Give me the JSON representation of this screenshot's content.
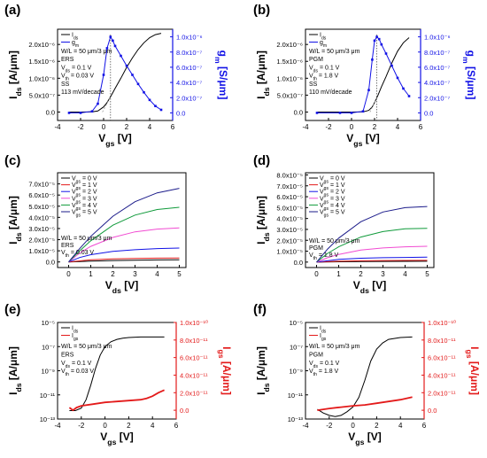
{
  "colors": {
    "black": "#000000",
    "blue": "#1212e6",
    "red": "#e31a1a",
    "grey": "#9a9a9a",
    "pink": "#f14bd2",
    "green": "#0f9a3a",
    "navy": "#1b1b8a"
  },
  "chart_data": [
    {
      "panel": "(a)",
      "type": "line",
      "xlabel": "V_gs [V]",
      "ylabel": "I_ds [A/μm]",
      "y2label": "g_m [S/μm]",
      "xlim": [
        -4,
        6
      ],
      "ylim": [
        -2.5e-07,
        2.45e-06
      ],
      "y2lim": [
        -1e-07,
        1.1e-06
      ],
      "xticks": [
        "-4",
        "-2",
        "0",
        "2",
        "4",
        "6"
      ],
      "yticks": [
        "0.0",
        "5.0x10⁻⁷",
        "1.0x10⁻⁶",
        "1.5x10⁻⁶",
        "2.0x10⁻⁶"
      ],
      "y2ticks": [
        "0.0",
        "2.0x10⁻⁷",
        "4.0x10⁻⁷",
        "6.0x10⁻⁷",
        "8.0x10⁻⁷",
        "1.0x10⁻⁶"
      ],
      "legend": [
        "I_ds",
        "g_m"
      ],
      "annotations": [
        "W/L = 50 μm/3 μm",
        "ERS",
        "V_ds = 0.1 V",
        "V_th = 0.03 V",
        "SS",
        "113 mV/decade"
      ],
      "series": [
        {
          "name": "I_ds",
          "axis": "left",
          "color": "black",
          "x": [
            -3,
            -2,
            -1,
            -0.5,
            0,
            0.3,
            0.6,
            1,
            1.5,
            2,
            2.5,
            3,
            3.5,
            4,
            4.5,
            5
          ],
          "y": [
            0,
            0,
            5e-09,
            3e-08,
            1.5e-07,
            2.8e-07,
            4.5e-07,
            7e-07,
            1e-06,
            1.32e-06,
            1.6e-06,
            1.85e-06,
            2.05e-06,
            2.2e-06,
            2.29e-06,
            2.33e-06
          ]
        },
        {
          "name": "g_m",
          "axis": "right",
          "color": "blue",
          "x": [
            -3,
            -2,
            -1,
            -0.5,
            0,
            0.3,
            0.6,
            0.8,
            1,
            1.5,
            2,
            2.5,
            3,
            3.5,
            4,
            4.5,
            5
          ],
          "y": [
            0,
            0,
            2e-08,
            1.2e-07,
            5e-07,
            8.5e-07,
            1e-06,
            9.5e-07,
            8.8e-07,
            7.5e-07,
            6.2e-07,
            5e-07,
            3.8e-07,
            2.7e-07,
            1.7e-07,
            9e-08,
            4e-08
          ]
        },
        {
          "name": "",
          "axis": "left",
          "color": "grey",
          "style": "dotted-extrapolation",
          "x": [
            -0.1,
            0.6
          ],
          "y": [
            0,
            4.5e-07
          ]
        }
      ],
      "vline": 0.6
    },
    {
      "panel": "(b)",
      "type": "line",
      "xlabel": "V_gs [V]",
      "ylabel": "I_ds [A/μm]",
      "y2label": "g_m [S/μm]",
      "xlim": [
        -4,
        6
      ],
      "ylim": [
        -2.5e-07,
        2.45e-06
      ],
      "y2lim": [
        -1e-07,
        1.1e-06
      ],
      "xticks": [
        "-4",
        "-2",
        "0",
        "2",
        "4",
        "6"
      ],
      "yticks": [
        "0.0",
        "5.0x10⁻⁷",
        "1.0x10⁻⁶",
        "1.5x10⁻⁶",
        "2.0x10⁻⁶"
      ],
      "y2ticks": [
        "0.0",
        "2.0x10⁻⁷",
        "4.0x10⁻⁷",
        "6.0x10⁻⁷",
        "8.0x10⁻⁷",
        "1.0x10⁻⁶"
      ],
      "legend": [
        "I_ds",
        "g_m"
      ],
      "annotations": [
        "W/L = 50 μm/3 μm",
        "PGM",
        "V_ds = 0.1 V",
        "V_th = 1.8 V",
        "SS",
        "110 mV/decade"
      ],
      "series": [
        {
          "name": "I_ds",
          "axis": "left",
          "color": "black",
          "x": [
            -3,
            -1,
            0,
            1,
            1.5,
            1.8,
            2,
            2.3,
            2.6,
            3,
            3.5,
            4,
            4.5,
            5
          ],
          "y": [
            0,
            0,
            0,
            5e-09,
            5e-08,
            1.5e-07,
            2.8e-07,
            5e-07,
            7.5e-07,
            1.05e-06,
            1.45e-06,
            1.8e-06,
            2.05e-06,
            2.2e-06
          ]
        },
        {
          "name": "g_m",
          "axis": "right",
          "color": "blue",
          "x": [
            -3,
            -1,
            0,
            1,
            1.5,
            1.8,
            2,
            2.2,
            2.4,
            2.6,
            3,
            3.5,
            4,
            4.5,
            5
          ],
          "y": [
            0,
            0,
            0,
            2e-08,
            3e-07,
            7e-07,
            9.5e-07,
            1e-06,
            9.7e-07,
            9e-07,
            7.8e-07,
            6.2e-07,
            4.6e-07,
            3.2e-07,
            2.2e-07
          ]
        },
        {
          "name": "",
          "axis": "left",
          "color": "grey",
          "style": "dotted-extrapolation",
          "x": [
            1.6,
            2.2
          ],
          "y": [
            0,
            4.2e-07
          ]
        }
      ],
      "vline": 2.2
    },
    {
      "panel": "(c)",
      "type": "line",
      "xlabel": "V_ds [V]",
      "ylabel": "I_ds [A/μm]",
      "xlim": [
        -0.5,
        5.3
      ],
      "ylim": [
        -5e-06,
        8e-05
      ],
      "xticks": [
        "0",
        "1",
        "2",
        "3",
        "4",
        "5"
      ],
      "yticks": [
        "0.0",
        "1.0x10⁻⁵",
        "2.0x10⁻⁵",
        "3.0x10⁻⁵",
        "4.0x10⁻⁵",
        "5.0x10⁻⁵",
        "6.0x10⁻⁵",
        "7.0x10⁻⁵"
      ],
      "legend": [
        "V_gs = 0 V",
        "V_gs = 1 V",
        "V_gs = 2 V",
        "V_gs = 3 V",
        "V_gs = 4 V",
        "V_gs = 5 V"
      ],
      "annotations": [
        "W/L = 50 μm/3 μm",
        "ERS",
        "V_th = 0.03 V"
      ],
      "series": [
        {
          "name": "V_gs = 0 V",
          "color": "black",
          "x": [
            0,
            1,
            2,
            3,
            4,
            5
          ],
          "y": [
            0,
            8e-07,
            1.3e-06,
            1.6e-06,
            1.8e-06,
            2e-06
          ]
        },
        {
          "name": "V_gs = 1 V",
          "color": "red",
          "x": [
            0,
            1,
            2,
            3,
            4,
            5
          ],
          "y": [
            0,
            2e-06,
            2.8e-06,
            3.2e-06,
            3.4e-06,
            3.6e-06
          ]
        },
        {
          "name": "V_gs = 2 V",
          "color": "blue",
          "x": [
            0,
            0.5,
            1,
            2,
            3,
            4,
            5
          ],
          "y": [
            0,
            4e-06,
            6.5e-06,
            9.5e-06,
            1.1e-05,
            1.2e-05,
            1.25e-05
          ]
        },
        {
          "name": "V_gs = 3 V",
          "color": "pink",
          "x": [
            0,
            0.5,
            1,
            2,
            3,
            4,
            5
          ],
          "y": [
            0,
            8e-06,
            1.4e-05,
            2.2e-05,
            2.7e-05,
            2.95e-05,
            3.05e-05
          ]
        },
        {
          "name": "V_gs = 4 V",
          "color": "green",
          "x": [
            0,
            0.5,
            1,
            2,
            3,
            4,
            5
          ],
          "y": [
            0,
            1e-05,
            1.9e-05,
            3.3e-05,
            4.2e-05,
            4.7e-05,
            4.9e-05
          ]
        },
        {
          "name": "V_gs = 5 V",
          "color": "navy",
          "x": [
            0,
            0.5,
            1,
            2,
            3,
            4,
            5
          ],
          "y": [
            0,
            1.2e-05,
            2.3e-05,
            4.1e-05,
            5.4e-05,
            6.2e-05,
            6.6e-05
          ]
        }
      ]
    },
    {
      "panel": "(d)",
      "type": "line",
      "xlabel": "V_ds [V]",
      "ylabel": "I_ds [A/μm]",
      "xlim": [
        -0.5,
        5.3
      ],
      "ylim": [
        -5e-06,
        8.2e-05
      ],
      "xticks": [
        "0",
        "1",
        "2",
        "3",
        "4",
        "5"
      ],
      "yticks": [
        "0.0",
        "1.0x10⁻⁵",
        "2.0x10⁻⁵",
        "3.0x10⁻⁵",
        "4.0x10⁻⁵",
        "5.0x10⁻⁵",
        "6.0x10⁻⁵",
        "7.0x10⁻⁵",
        "8.0x10⁻⁵"
      ],
      "legend": [
        "V_gs = 0 V",
        "V_gs = 1 V",
        "V_gs = 2 V",
        "V_gs = 3 V",
        "V_gs = 4 V",
        "V_gs = 5 V"
      ],
      "annotations": [
        "W/L = 50 μm/3 μm",
        "PGM",
        "V_th = 1.8 V"
      ],
      "series": [
        {
          "name": "V_gs = 0 V",
          "color": "black",
          "x": [
            0,
            1,
            2,
            3,
            4,
            5
          ],
          "y": [
            0,
            3e-07,
            5e-07,
            6e-07,
            7e-07,
            8e-07
          ]
        },
        {
          "name": "V_gs = 1 V",
          "color": "red",
          "x": [
            0,
            1,
            2,
            3,
            4,
            5
          ],
          "y": [
            0,
            8e-07,
            1.2e-06,
            1.4e-06,
            1.5e-06,
            1.6e-06
          ]
        },
        {
          "name": "V_gs = 2 V",
          "color": "blue",
          "x": [
            0,
            1,
            2,
            3,
            4,
            5
          ],
          "y": [
            0,
            2.5e-06,
            3.5e-06,
            4e-06,
            4.3e-06,
            4.5e-06
          ]
        },
        {
          "name": "V_gs = 3 V",
          "color": "pink",
          "x": [
            0,
            0.5,
            1,
            2,
            3,
            4,
            5
          ],
          "y": [
            0,
            4e-06,
            7e-06,
            1.1e-05,
            1.3e-05,
            1.4e-05,
            1.45e-05
          ]
        },
        {
          "name": "V_gs = 4 V",
          "color": "green",
          "x": [
            0,
            0.5,
            1,
            2,
            3,
            4,
            5
          ],
          "y": [
            0,
            8e-06,
            1.4e-05,
            2.3e-05,
            2.8e-05,
            3.05e-05,
            3.1e-05
          ]
        },
        {
          "name": "V_gs = 5 V",
          "color": "navy",
          "x": [
            0,
            0.5,
            1,
            2,
            3,
            4,
            5
          ],
          "y": [
            0,
            1.2e-05,
            2.2e-05,
            3.7e-05,
            4.6e-05,
            5e-05,
            5.1e-05
          ]
        }
      ]
    },
    {
      "panel": "(e)",
      "type": "line",
      "yscale": "log",
      "xlabel": "V_gs [V]",
      "ylabel": "I_ds [A/μm]",
      "y2label": "I_gs [A/μm]",
      "xlim": [
        -4,
        6
      ],
      "ylim_log10": [
        -13,
        -5
      ],
      "y2lim": [
        -1e-11,
        1e-10
      ],
      "xticks": [
        "-4",
        "-2",
        "0",
        "2",
        "4",
        "6"
      ],
      "yticks": [
        "10⁻¹³",
        "10⁻¹¹",
        "10⁻⁹",
        "10⁻⁷",
        "10⁻⁵"
      ],
      "y2ticks": [
        "0.0",
        "2.0x10⁻¹¹",
        "4.0x10⁻¹¹",
        "6.0x10⁻¹¹",
        "8.0x10⁻¹¹",
        "1.0x10⁻¹⁰"
      ],
      "legend": [
        "I_ds",
        "I_gs"
      ],
      "annotations": [
        "W/L = 50 μm/3 μm",
        "ERS",
        "V_ds = 0.1 V",
        "V_th = 0.03 V"
      ],
      "series": [
        {
          "name": "I_ds",
          "axis": "left",
          "color": "black",
          "x": [
            -3,
            -2.5,
            -2,
            -1.6,
            -1.2,
            -0.8,
            -0.4,
            0,
            0.5,
            1,
            1.5,
            2,
            3,
            4,
            5
          ],
          "y_log10": [
            -12.3,
            -12.3,
            -12.1,
            -11.4,
            -10.2,
            -8.8,
            -7.7,
            -7.0,
            -6.6,
            -6.4,
            -6.3,
            -6.25,
            -6.2,
            -6.2,
            -6.2
          ]
        },
        {
          "name": "I_gs",
          "axis": "right",
          "color": "red",
          "x": [
            -3,
            -2.7,
            -2.4,
            -2,
            -1,
            0,
            1,
            2,
            3,
            3.5,
            4,
            4.5,
            5
          ],
          "y": [
            3e-12,
            0.0,
            3e-12,
            5e-12,
            7e-12,
            9e-12,
            1e-11,
            1.1e-11,
            1.2e-11,
            1.35e-11,
            1.6e-11,
            2e-11,
            2.3e-11
          ]
        }
      ]
    },
    {
      "panel": "(f)",
      "type": "line",
      "yscale": "log",
      "xlabel": "V_gs [V]",
      "ylabel": "I_ds [A/μm]",
      "y2label": "I_gs [A/μm]",
      "xlim": [
        -4,
        6
      ],
      "ylim_log10": [
        -13,
        -5
      ],
      "y2lim": [
        -1e-11,
        1e-10
      ],
      "xticks": [
        "-4",
        "-2",
        "0",
        "2",
        "4",
        "6"
      ],
      "yticks": [
        "10⁻¹³",
        "10⁻¹¹",
        "10⁻⁹",
        "10⁻⁷",
        "10⁻⁵"
      ],
      "y2ticks": [
        "0.0",
        "2.0x10⁻¹¹",
        "4.0x10⁻¹¹",
        "6.0x10⁻¹¹",
        "8.0x10⁻¹¹",
        "1.0x10⁻¹⁰"
      ],
      "legend": [
        "I_ds",
        "I_gs"
      ],
      "annotations": [
        "W/L = 50 μm/3 μm",
        "PGM",
        "V_ds = 0.1 V",
        "V_th = 1.8 V"
      ],
      "series": [
        {
          "name": "I_ds",
          "axis": "left",
          "color": "black",
          "x": [
            -3,
            -2.5,
            -2,
            -1.5,
            -1,
            -0.5,
            0,
            0.5,
            1,
            1.5,
            2,
            2.5,
            3,
            4,
            5
          ],
          "y_log10": [
            -12.2,
            -12.5,
            -12.7,
            -12.8,
            -12.7,
            -12.4,
            -12.0,
            -11.2,
            -9.8,
            -8.2,
            -7.2,
            -6.7,
            -6.4,
            -6.25,
            -6.2
          ]
        },
        {
          "name": "I_gs",
          "axis": "right",
          "color": "red",
          "x": [
            -3,
            -2,
            -1,
            0,
            1,
            2,
            3,
            4,
            5
          ],
          "y": [
            0.0,
            2e-12,
            3.5e-12,
            5e-12,
            6e-12,
            8e-12,
            1e-11,
            1.2e-11,
            1.5e-11
          ]
        }
      ]
    }
  ]
}
